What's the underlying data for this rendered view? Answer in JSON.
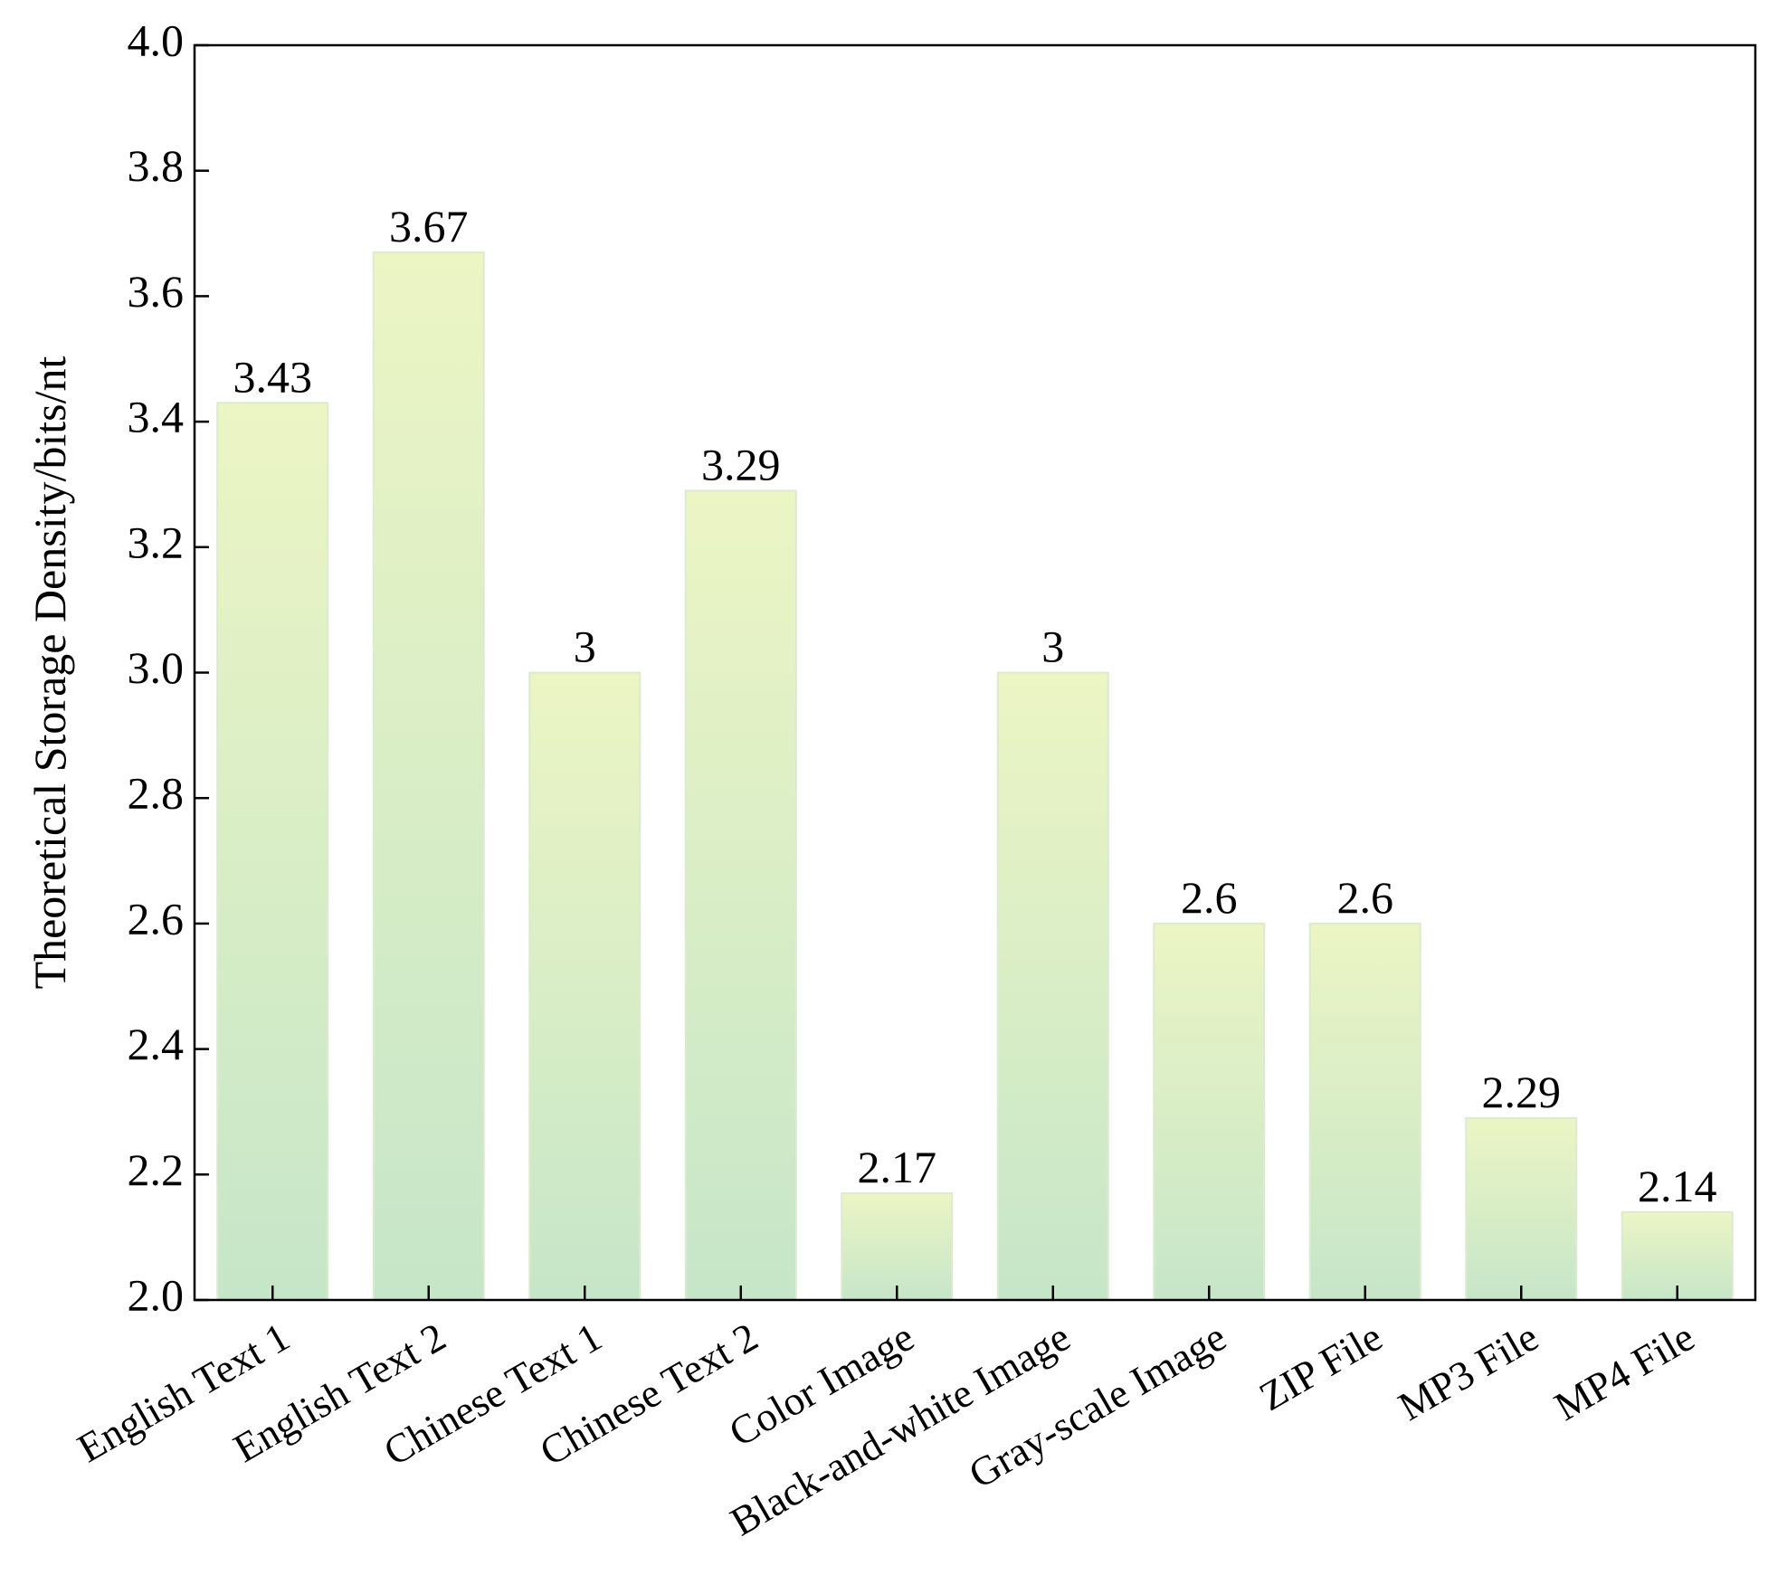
{
  "chart_data": {
    "type": "bar",
    "title": "",
    "xlabel": "",
    "ylabel": "Theoretical Storage Density/bits/nt",
    "ylim": [
      2.0,
      4.0
    ],
    "yticks": [
      "2.0",
      "2.2",
      "2.4",
      "2.6",
      "2.8",
      "3.0",
      "3.2",
      "3.4",
      "3.6",
      "3.8",
      "4.0"
    ],
    "categories": [
      "English Text 1",
      "English Text 2",
      "Chinese Text 1",
      "Chinese Text 2",
      "Color Image",
      "Black-and-white Image",
      "Gray-scale Image",
      "ZIP File",
      "MP3 File",
      "MP4 File"
    ],
    "values": [
      3.43,
      3.67,
      3.0,
      3.29,
      2.17,
      3.0,
      2.6,
      2.6,
      2.29,
      2.14
    ],
    "value_labels": [
      "3.43",
      "3.67",
      "3",
      "3.29",
      "2.17",
      "3",
      "2.6",
      "2.6",
      "2.29",
      "2.14"
    ],
    "grid": false,
    "colors": {
      "bar_top": "#ecf5c4",
      "bar_bottom": "#c6e6c8",
      "bar_stroke": "#dcebd0",
      "axis": "#000000"
    }
  }
}
